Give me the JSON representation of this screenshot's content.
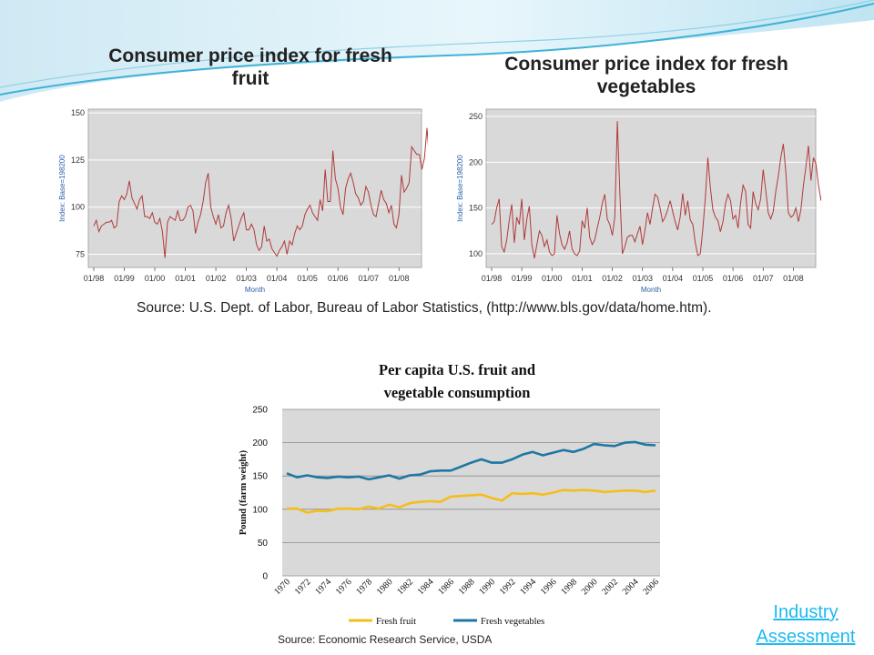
{
  "slide": {
    "link_text": "Industry Assessment",
    "colors": {
      "accent_swoosh": "#3fb2d6",
      "link": "#1cbaf0"
    }
  },
  "fruit_cpi": {
    "title": "Consumer price index for fresh fruit",
    "source": "Source: U.S. Dept. of Labor, Bureau of Labor Statistics, (http://www.bls.gov/data/home.htm)."
  },
  "veg_cpi": {
    "title": "Consumer price index for fresh vegetables"
  },
  "consumption": {
    "source": "Source: Economic Research Service, USDA"
  },
  "chart_data": [
    {
      "type": "line",
      "ylabel": "Index: Base=198200",
      "xlabel": "Month",
      "xticks": [
        "01/98",
        "01/99",
        "01/00",
        "01/01",
        "01/02",
        "01/03",
        "01/04",
        "01/05",
        "01/06",
        "01/07",
        "01/08"
      ],
      "yticks": [
        75,
        100,
        125,
        150
      ],
      "ylim": [
        68,
        152
      ],
      "x_start": "1998-01",
      "grid": true,
      "series": [
        {
          "color": "#b03a3a",
          "values": [
            90,
            93,
            87,
            90,
            91,
            92,
            92,
            93,
            89,
            90,
            103,
            106,
            104,
            107,
            114,
            105,
            102,
            99,
            104,
            106,
            95,
            95,
            94,
            97,
            92,
            91,
            94,
            87,
            73,
            92,
            95,
            94,
            93,
            98,
            93,
            93,
            95,
            100,
            101,
            98,
            86,
            92,
            96,
            103,
            113,
            118,
            100,
            95,
            91,
            96,
            89,
            90,
            97,
            101,
            94,
            82,
            86,
            90,
            94,
            97,
            88,
            88,
            91,
            88,
            80,
            77,
            79,
            90,
            82,
            83,
            78,
            76,
            74,
            77,
            79,
            82,
            75,
            82,
            80,
            86,
            90,
            88,
            90,
            96,
            99,
            101,
            97,
            95,
            93,
            104,
            98,
            120,
            103,
            103,
            130,
            115,
            110,
            100,
            96,
            110,
            115,
            118,
            113,
            107,
            105,
            101,
            103,
            111,
            108,
            101,
            96,
            95,
            102,
            109,
            104,
            102,
            97,
            101,
            91,
            89,
            96,
            117,
            108,
            110,
            113,
            132,
            130,
            128,
            128,
            120,
            126,
            142,
            124,
            130,
            135,
            132,
            130,
            137,
            126,
            115,
            112,
            108,
            112,
            115,
            118,
            132,
            137,
            144,
            147,
            137,
            129,
            126,
            135,
            133
          ]
        }
      ]
    },
    {
      "type": "line",
      "ylabel": "Index: Base=198200",
      "xlabel": "Month",
      "xticks": [
        "01/98",
        "01/99",
        "01/00",
        "01/01",
        "01/02",
        "01/03",
        "01/04",
        "01/05",
        "01/06",
        "01/07",
        "01/08"
      ],
      "yticks": [
        100,
        150,
        200,
        250
      ],
      "ylim": [
        85,
        258
      ],
      "x_start": "1998-01",
      "grid": true,
      "series": [
        {
          "color": "#b03a3a",
          "values": [
            132,
            135,
            150,
            160,
            108,
            102,
            115,
            136,
            154,
            112,
            140,
            132,
            160,
            115,
            138,
            152,
            110,
            95,
            110,
            125,
            120,
            108,
            115,
            102,
            98,
            100,
            142,
            122,
            110,
            105,
            112,
            125,
            105,
            100,
            98,
            103,
            136,
            128,
            150,
            118,
            110,
            115,
            128,
            140,
            155,
            165,
            138,
            132,
            120,
            140,
            245,
            165,
            100,
            108,
            118,
            120,
            120,
            113,
            122,
            130,
            110,
            126,
            145,
            132,
            150,
            165,
            162,
            150,
            135,
            140,
            148,
            158,
            146,
            135,
            126,
            140,
            166,
            142,
            158,
            137,
            132,
            112,
            98,
            100,
            127,
            162,
            205,
            172,
            148,
            140,
            136,
            124,
            135,
            155,
            165,
            158,
            138,
            142,
            128,
            155,
            175,
            168,
            132,
            128,
            168,
            155,
            148,
            160,
            192,
            170,
            145,
            138,
            146,
            168,
            185,
            205,
            220,
            190,
            145,
            140,
            142,
            150,
            135,
            148,
            175,
            195,
            218,
            180,
            205,
            198,
            175,
            158,
            180,
            192,
            182,
            172,
            165,
            188,
            212,
            220,
            196,
            180,
            168,
            177,
            195,
            182,
            202,
            195,
            170,
            188,
            175,
            180,
            190
          ]
        }
      ]
    },
    {
      "type": "line",
      "title": "Per capita U.S. fruit and vegetable consumption",
      "ylabel": "Pound (farm weight)",
      "xlabel": "",
      "ylim": [
        0,
        250
      ],
      "yticks": [
        0,
        50,
        100,
        150,
        200,
        250
      ],
      "x": [
        1970,
        1971,
        1972,
        1973,
        1974,
        1975,
        1976,
        1977,
        1978,
        1979,
        1980,
        1981,
        1982,
        1983,
        1984,
        1985,
        1986,
        1987,
        1988,
        1989,
        1990,
        1991,
        1992,
        1993,
        1994,
        1995,
        1996,
        1997,
        1998,
        1999,
        2000,
        2001,
        2002,
        2003,
        2004,
        2005,
        2006
      ],
      "xticks": [
        1970,
        1972,
        1974,
        1976,
        1978,
        1980,
        1982,
        1984,
        1986,
        1988,
        1990,
        1992,
        1994,
        1996,
        1998,
        2000,
        2002,
        2004,
        2006
      ],
      "grid": true,
      "legend": "bottom",
      "series": [
        {
          "name": "Fresh fruit",
          "color": "#f5be1b",
          "values": [
            101,
            101,
            95,
            98,
            97,
            101,
            101,
            100,
            104,
            101,
            107,
            103,
            109,
            111,
            112,
            111,
            119,
            120,
            121,
            122,
            117,
            113,
            124,
            123,
            124,
            122,
            125,
            129,
            128,
            129,
            128,
            126,
            127,
            128,
            128,
            126,
            128
          ]
        },
        {
          "name": "Fresh vegetables",
          "color": "#1f77a3",
          "values": [
            154,
            148,
            151,
            148,
            147,
            149,
            148,
            149,
            145,
            148,
            151,
            146,
            151,
            152,
            157,
            158,
            158,
            164,
            170,
            175,
            170,
            170,
            175,
            182,
            186,
            181,
            185,
            189,
            186,
            191,
            198,
            196,
            195,
            200,
            201,
            197,
            196
          ]
        }
      ]
    }
  ]
}
